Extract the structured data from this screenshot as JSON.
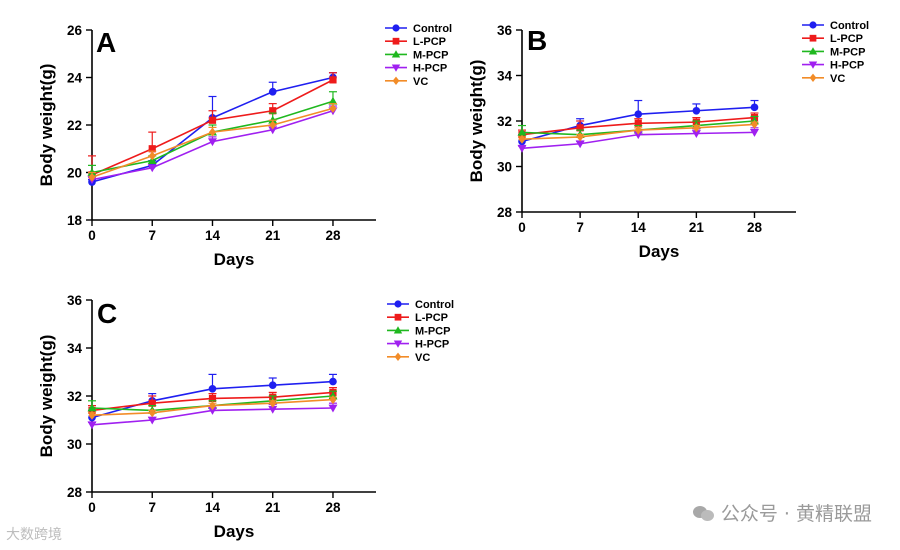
{
  "colors": {
    "control": "#1f1ff0",
    "l_pcp": "#ee1b1b",
    "m_pcp": "#1fb81f",
    "h_pcp": "#a020f0",
    "vc": "#f28c28"
  },
  "watermark": {
    "right": "公众号 · 黄精联盟",
    "left": "大数跨境"
  },
  "chart_data": [
    {
      "panel": "A",
      "type": "line",
      "xlabel": "Days",
      "ylabel": "Body weight(g)",
      "x": [
        0,
        7,
        14,
        21,
        28
      ],
      "x_ticks": [
        "0",
        "7",
        "14",
        "21",
        "28"
      ],
      "ylim": [
        18,
        26
      ],
      "y_ticks": [
        18,
        20,
        22,
        24,
        26
      ],
      "legend_position": "top-right",
      "series": [
        {
          "name": "Control",
          "marker": "circle",
          "color_key": "control",
          "values": [
            19.6,
            20.3,
            22.3,
            23.4,
            24.0
          ],
          "errors": [
            0.1,
            0.2,
            0.9,
            0.4,
            0.2
          ]
        },
        {
          "name": "L-PCP",
          "marker": "square",
          "color_key": "l_pcp",
          "values": [
            19.9,
            21.0,
            22.2,
            22.6,
            23.9
          ],
          "errors": [
            0.8,
            0.7,
            0.4,
            0.3,
            0.3
          ]
        },
        {
          "name": "M-PCP",
          "marker": "triangle-up",
          "color_key": "m_pcp",
          "values": [
            20.0,
            20.5,
            21.7,
            22.2,
            23.0
          ],
          "errors": [
            0.3,
            0.2,
            0.3,
            0.3,
            0.4
          ]
        },
        {
          "name": "H-PCP",
          "marker": "triangle-down",
          "color_key": "h_pcp",
          "values": [
            19.7,
            20.2,
            21.3,
            21.8,
            22.6
          ],
          "errors": [
            0.1,
            0.1,
            0.2,
            0.2,
            0.2
          ]
        },
        {
          "name": "VC",
          "marker": "diamond",
          "color_key": "vc",
          "values": [
            19.8,
            20.7,
            21.7,
            22.0,
            22.7
          ],
          "errors": [
            0.2,
            0.2,
            0.2,
            0.2,
            0.2
          ]
        }
      ]
    },
    {
      "panel": "B",
      "type": "line",
      "xlabel": "Days",
      "ylabel": "Body weight(g)",
      "x": [
        0,
        7,
        14,
        21,
        28
      ],
      "x_ticks": [
        "0",
        "7",
        "14",
        "21",
        "28"
      ],
      "ylim": [
        28,
        36
      ],
      "y_ticks": [
        28,
        30,
        32,
        34,
        36
      ],
      "legend_position": "top-right",
      "series": [
        {
          "name": "Control",
          "marker": "circle",
          "color_key": "control",
          "values": [
            31.1,
            31.8,
            32.3,
            32.45,
            32.6
          ],
          "errors": [
            0.3,
            0.3,
            0.6,
            0.3,
            0.3
          ]
        },
        {
          "name": "L-PCP",
          "marker": "square",
          "color_key": "l_pcp",
          "values": [
            31.4,
            31.7,
            31.9,
            31.95,
            32.15
          ],
          "errors": [
            0.2,
            0.3,
            0.2,
            0.2,
            0.2
          ]
        },
        {
          "name": "M-PCP",
          "marker": "triangle-up",
          "color_key": "m_pcp",
          "values": [
            31.5,
            31.4,
            31.6,
            31.8,
            32.0
          ],
          "errors": [
            0.3,
            0.2,
            0.2,
            0.2,
            0.2
          ]
        },
        {
          "name": "H-PCP",
          "marker": "triangle-down",
          "color_key": "h_pcp",
          "values": [
            30.8,
            31.0,
            31.4,
            31.45,
            31.5
          ],
          "errors": [
            0.1,
            0.1,
            0.2,
            0.2,
            0.2
          ]
        },
        {
          "name": "VC",
          "marker": "diamond",
          "color_key": "vc",
          "values": [
            31.2,
            31.3,
            31.6,
            31.7,
            31.85
          ],
          "errors": [
            0.1,
            0.1,
            0.1,
            0.1,
            0.1
          ]
        }
      ]
    },
    {
      "panel": "C",
      "type": "line",
      "xlabel": "Days",
      "ylabel": "Body weight(g)",
      "x": [
        0,
        7,
        14,
        21,
        28
      ],
      "x_ticks": [
        "0",
        "7",
        "14",
        "21",
        "28"
      ],
      "ylim": [
        28,
        36
      ],
      "y_ticks": [
        28,
        30,
        32,
        34,
        36
      ],
      "legend_position": "top-right",
      "series": [
        {
          "name": "Control",
          "marker": "circle",
          "color_key": "control",
          "values": [
            31.1,
            31.8,
            32.3,
            32.45,
            32.6
          ],
          "errors": [
            0.3,
            0.3,
            0.6,
            0.3,
            0.3
          ]
        },
        {
          "name": "L-PCP",
          "marker": "square",
          "color_key": "l_pcp",
          "values": [
            31.4,
            31.7,
            31.9,
            31.95,
            32.15
          ],
          "errors": [
            0.2,
            0.3,
            0.2,
            0.2,
            0.2
          ]
        },
        {
          "name": "M-PCP",
          "marker": "triangle-up",
          "color_key": "m_pcp",
          "values": [
            31.5,
            31.4,
            31.6,
            31.8,
            32.0
          ],
          "errors": [
            0.3,
            0.2,
            0.2,
            0.2,
            0.2
          ]
        },
        {
          "name": "H-PCP",
          "marker": "triangle-down",
          "color_key": "h_pcp",
          "values": [
            30.8,
            31.0,
            31.4,
            31.45,
            31.5
          ],
          "errors": [
            0.1,
            0.1,
            0.2,
            0.2,
            0.2
          ]
        },
        {
          "name": "VC",
          "marker": "diamond",
          "color_key": "vc",
          "values": [
            31.2,
            31.3,
            31.6,
            31.7,
            31.85
          ],
          "errors": [
            0.1,
            0.1,
            0.1,
            0.1,
            0.1
          ]
        }
      ]
    }
  ]
}
